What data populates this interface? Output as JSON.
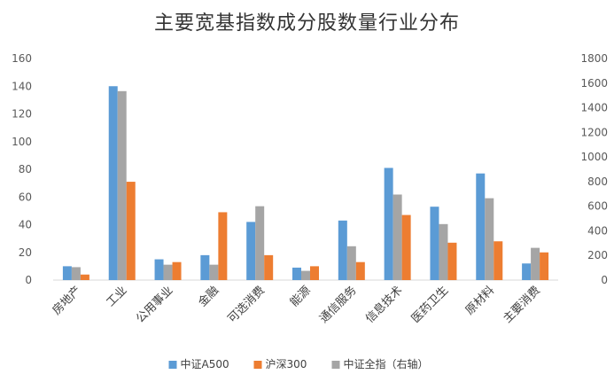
{
  "chart_data": {
    "type": "bar",
    "title": "主要宽基指数成分股数量行业分布",
    "categories": [
      "房地产",
      "工业",
      "公用事业",
      "金融",
      "可选消费",
      "能源",
      "通信服务",
      "信息技术",
      "医药卫生",
      "原材料",
      "主要消费"
    ],
    "series": [
      {
        "name": "中证A500",
        "axis": "left",
        "color": "#5b9bd5",
        "values": [
          10,
          140,
          15,
          18,
          42,
          9,
          43,
          81,
          53,
          77,
          12
        ]
      },
      {
        "name": "中证全指（右轴）",
        "axis": "right",
        "color": "#a5a5a5",
        "values": [
          105,
          1535,
          125,
          125,
          600,
          75,
          275,
          695,
          455,
          665,
          262
        ]
      },
      {
        "name": "沪深300",
        "axis": "left",
        "color": "#ed7d31",
        "values": [
          4,
          71,
          13,
          49,
          18,
          10,
          13,
          47,
          27,
          28,
          20
        ]
      }
    ],
    "left_axis": {
      "min": 0,
      "max": 160,
      "ticks": [
        0,
        20,
        40,
        60,
        80,
        100,
        120,
        140,
        160
      ]
    },
    "right_axis": {
      "min": 0,
      "max": 1800,
      "ticks": [
        0,
        200,
        400,
        600,
        800,
        1000,
        1200,
        1400,
        1600,
        1800
      ]
    },
    "legend": {
      "placement": "bottom",
      "items": [
        "中证A500",
        "沪深300",
        "中证全指（右轴）"
      ]
    },
    "grid": false
  }
}
